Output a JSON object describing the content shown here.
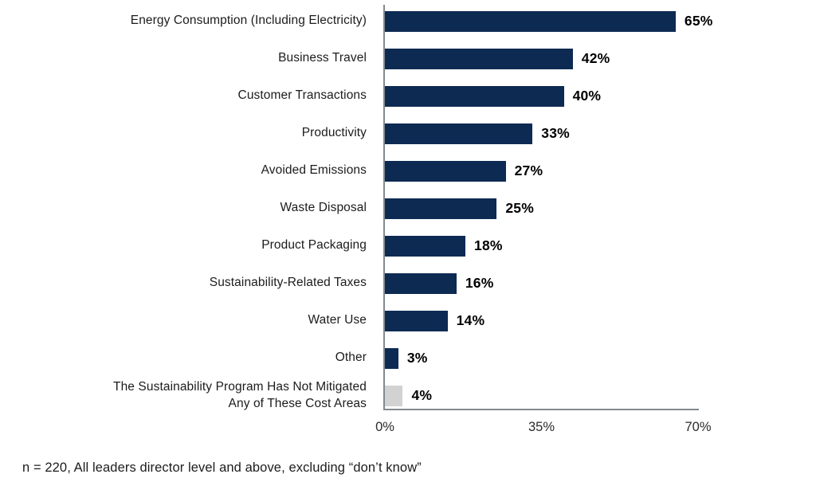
{
  "chart_data": {
    "type": "bar",
    "orientation": "horizontal",
    "title": "",
    "categories": [
      "Energy Consumption (Including Electricity)",
      "Business Travel",
      "Customer Transactions",
      "Productivity",
      "Avoided Emissions",
      "Waste Disposal",
      "Product Packaging",
      "Sustainability-Related Taxes",
      "Water Use",
      "Other",
      "The Sustainability Program Has Not Mitigated\nAny of These Cost Areas"
    ],
    "values": [
      65,
      42,
      40,
      33,
      27,
      25,
      18,
      16,
      14,
      3,
      4
    ],
    "value_labels": [
      "65%",
      "42%",
      "40%",
      "33%",
      "27%",
      "25%",
      "18%",
      "16%",
      "14%",
      "3%",
      "4%"
    ],
    "bar_color": "#0d2a52",
    "muted_bar_color": "#d2d2d2",
    "muted_bar_index": 10,
    "axis_color": "#828a90",
    "xlim": [
      0,
      70
    ],
    "x_ticks": [
      {
        "label": "0%",
        "value": 0
      },
      {
        "label": "35%",
        "value": 35
      },
      {
        "label": "70%",
        "value": 70
      }
    ],
    "grid": "off",
    "legend": "none",
    "footnote": "n = 220, All leaders director level and above, excluding “don’t know”"
  }
}
